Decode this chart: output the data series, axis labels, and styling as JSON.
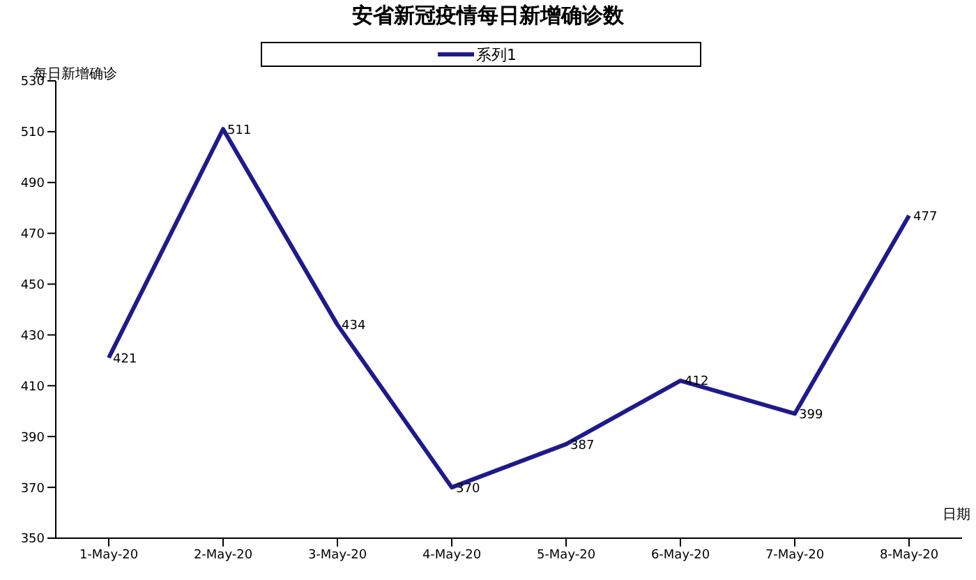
{
  "chart_data": {
    "type": "line",
    "title": "安省新冠疫情每日新增确诊数",
    "ylabel": "每日新增确诊",
    "xlabel": "日期",
    "categories": [
      "1-May-20",
      "2-May-20",
      "3-May-20",
      "4-May-20",
      "5-May-20",
      "6-May-20",
      "7-May-20",
      "8-May-20"
    ],
    "series": [
      {
        "name": "系列1",
        "color": "#1f1a8c",
        "values": [
          421,
          511,
          434,
          370,
          387,
          412,
          399,
          477
        ]
      }
    ],
    "ylim": [
      350,
      530
    ],
    "yticks": [
      350,
      370,
      390,
      410,
      430,
      450,
      470,
      490,
      510,
      530
    ],
    "grid": false,
    "legend": "top",
    "marker": "none",
    "line_style": "solid",
    "data_labels": true
  }
}
